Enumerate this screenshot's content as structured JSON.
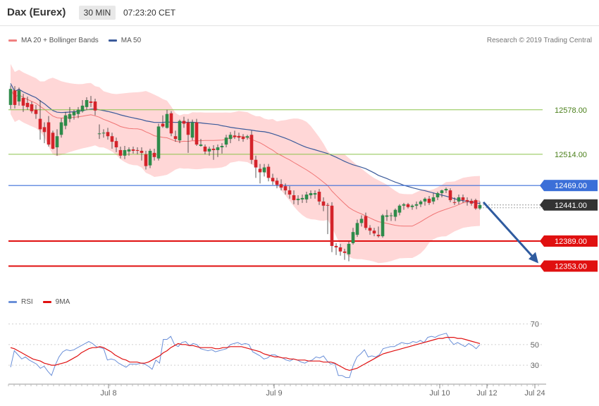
{
  "header": {
    "title": "Dax (Eurex)",
    "timeframe": "30 MIN",
    "time": "07:23:20 CET"
  },
  "legend": {
    "bollinger_label": "MA 20 + Bollinger Bands",
    "ma50_label": "MA 50",
    "credit": "Research © 2019 Trading Central"
  },
  "rsi_legend": {
    "rsi_label": "RSI",
    "ma9_label": "9MA"
  },
  "colors": {
    "up_candle": "#2e8b4a",
    "down_candle": "#d4232a",
    "bollinger_band": "#ffd0d0",
    "ma20": "#f07575",
    "ma50": "#3b5a9a",
    "resistance": "#3b6fd8",
    "support": "#e01010",
    "target": "#8bc34a",
    "arrow": "#2f5b9f",
    "rsi": "#6a8fd8",
    "rsi_ma": "#e01010"
  },
  "chart_data": [
    {
      "type": "candlestick",
      "title": "Dax (Eurex)",
      "ylim": [
        12320,
        12660
      ],
      "x_ticks": [
        "Jul 8",
        "Jul 9",
        "Jul 10",
        "Jul 12",
        "Jul 24"
      ],
      "levels": [
        {
          "value": 12578,
          "label": "12578.00",
          "kind": "target"
        },
        {
          "value": 12514,
          "label": "12514.00",
          "kind": "target"
        },
        {
          "value": 12469,
          "label": "12469.00",
          "kind": "resistance"
        },
        {
          "value": 12441,
          "label": "12441.00",
          "kind": "current"
        },
        {
          "value": 12389,
          "label": "12389.00",
          "kind": "support"
        },
        {
          "value": 12353,
          "label": "12353.00",
          "kind": "support"
        }
      ],
      "ohlc": [
        [
          12585,
          12613,
          12579,
          12608
        ],
        [
          12606,
          12612,
          12580,
          12585
        ],
        [
          12590,
          12610,
          12584,
          12606
        ],
        [
          12595,
          12601,
          12575,
          12584
        ],
        [
          12588,
          12597,
          12578,
          12582
        ],
        [
          12586,
          12590,
          12573,
          12576
        ],
        [
          12578,
          12585,
          12565,
          12572
        ],
        [
          12565,
          12592,
          12535,
          12550
        ],
        [
          12553,
          12560,
          12530,
          12546
        ],
        [
          12560,
          12569,
          12525,
          12528
        ],
        [
          12545,
          12548,
          12521,
          12522
        ],
        [
          12524,
          12550,
          12512,
          12540
        ],
        [
          12542,
          12566,
          12538,
          12560
        ],
        [
          12555,
          12575,
          12550,
          12570
        ],
        [
          12565,
          12582,
          12560,
          12572
        ],
        [
          12570,
          12578,
          12564,
          12575
        ],
        [
          12572,
          12582,
          12566,
          12578
        ],
        [
          12576,
          12592,
          12574,
          12584
        ],
        [
          12582,
          12596,
          12578,
          12592
        ],
        [
          12590,
          12598,
          12582,
          12588
        ],
        [
          12590,
          12594,
          12570,
          12577
        ],
        [
          12543,
          12557,
          12536,
          12544
        ],
        [
          12544,
          12550,
          12538,
          12545
        ],
        [
          12546,
          12552,
          12535,
          12540
        ],
        [
          12540,
          12545,
          12522,
          12532
        ],
        [
          12533,
          12538,
          12517,
          12524
        ],
        [
          12520,
          12525,
          12508,
          12512
        ],
        [
          12512,
          12526,
          12507,
          12520
        ],
        [
          12518,
          12524,
          12512,
          12521
        ],
        [
          12521,
          12525,
          12515,
          12519
        ],
        [
          12520,
          12524,
          12514,
          12519
        ],
        [
          12519,
          12524,
          12505,
          12516
        ],
        [
          12514,
          12519,
          12492,
          12497
        ],
        [
          12498,
          12522,
          12494,
          12519
        ],
        [
          12516,
          12522,
          12505,
          12510
        ],
        [
          12508,
          12558,
          12505,
          12554
        ],
        [
          12558,
          12570,
          12552,
          12554
        ],
        [
          12552,
          12578,
          12551,
          12572
        ],
        [
          12573,
          12576,
          12540,
          12544
        ],
        [
          12540,
          12548,
          12532,
          12536
        ],
        [
          12534,
          12564,
          12530,
          12562
        ],
        [
          12562,
          12568,
          12552,
          12558
        ],
        [
          12560,
          12565,
          12516,
          12542
        ],
        [
          12538,
          12564,
          12534,
          12560
        ],
        [
          12560,
          12565,
          12526,
          12528
        ],
        [
          12526,
          12536,
          12525,
          12528
        ],
        [
          12525,
          12528,
          12514,
          12518
        ],
        [
          12518,
          12525,
          12512,
          12522
        ],
        [
          12522,
          12527,
          12506,
          12520
        ],
        [
          12520,
          12528,
          12510,
          12524
        ],
        [
          12524,
          12530,
          12515,
          12526
        ],
        [
          12528,
          12542,
          12524,
          12538
        ],
        [
          12536,
          12546,
          12530,
          12542
        ],
        [
          12541,
          12548,
          12536,
          12539
        ],
        [
          12540,
          12545,
          12533,
          12538
        ],
        [
          12539,
          12543,
          12532,
          12536
        ],
        [
          12538,
          12542,
          12535,
          12540
        ],
        [
          12542,
          12548,
          12500,
          12506
        ],
        [
          12506,
          12512,
          12480,
          12495
        ],
        [
          12493,
          12500,
          12472,
          12488
        ],
        [
          12488,
          12500,
          12482,
          12495
        ],
        [
          12496,
          12500,
          12475,
          12480
        ],
        [
          12480,
          12486,
          12470,
          12475
        ],
        [
          12476,
          12480,
          12465,
          12470
        ],
        [
          12471,
          12478,
          12462,
          12466
        ],
        [
          12468,
          12472,
          12456,
          12462
        ],
        [
          12462,
          12468,
          12450,
          12456
        ],
        [
          12455,
          12462,
          12442,
          12448
        ],
        [
          12448,
          12455,
          12441,
          12450
        ],
        [
          12449,
          12456,
          12444,
          12451
        ],
        [
          12449,
          12460,
          12444,
          12456
        ],
        [
          12455,
          12462,
          12450,
          12458
        ],
        [
          12456,
          12462,
          12450,
          12458
        ],
        [
          12460,
          12464,
          12441,
          12446
        ],
        [
          12446,
          12452,
          12432,
          12440
        ],
        [
          12441,
          12444,
          12399,
          12440
        ],
        [
          12440,
          12445,
          12373,
          12382
        ],
        [
          12382,
          12386,
          12369,
          12380
        ],
        [
          12380,
          12385,
          12368,
          12374
        ],
        [
          12374,
          12378,
          12362,
          12372
        ],
        [
          12370,
          12388,
          12360,
          12385
        ],
        [
          12386,
          12408,
          12384,
          12402
        ],
        [
          12398,
          12420,
          12395,
          12415
        ],
        [
          12415,
          12426,
          12410,
          12421
        ],
        [
          12425,
          12430,
          12405,
          12408
        ],
        [
          12408,
          12412,
          12398,
          12404
        ],
        [
          12404,
          12408,
          12396,
          12400
        ],
        [
          12398,
          12410,
          12394,
          12396
        ],
        [
          12396,
          12428,
          12394,
          12426
        ],
        [
          12424,
          12434,
          12418,
          12426
        ],
        [
          12425,
          12430,
          12418,
          12426
        ],
        [
          12424,
          12436,
          12418,
          12434
        ],
        [
          12430,
          12442,
          12426,
          12440
        ],
        [
          12440,
          12444,
          12434,
          12442
        ],
        [
          12442,
          12444,
          12436,
          12438
        ],
        [
          12438,
          12442,
          12434,
          12440
        ],
        [
          12440,
          12446,
          12435,
          12442
        ],
        [
          12442,
          12448,
          12438,
          12446
        ],
        [
          12446,
          12452,
          12440,
          12450
        ],
        [
          12450,
          12454,
          12441,
          12444
        ],
        [
          12446,
          12458,
          12442,
          12452
        ],
        [
          12452,
          12460,
          12448,
          12458
        ],
        [
          12458,
          12463,
          12452,
          12462
        ],
        [
          12462,
          12466,
          12458,
          12464
        ],
        [
          12462,
          12465,
          12445,
          12448
        ],
        [
          12445,
          12452,
          12441,
          12444
        ],
        [
          12446,
          12456,
          12442,
          12452
        ],
        [
          12452,
          12456,
          12444,
          12448
        ],
        [
          12448,
          12452,
          12440,
          12446
        ],
        [
          12447,
          12450,
          12440,
          12443
        ],
        [
          12448,
          12450,
          12434,
          12436
        ],
        [
          12436,
          12446,
          12434,
          12441
        ]
      ]
    },
    {
      "type": "line",
      "title": "RSI",
      "ylim": [
        15,
        80
      ],
      "y_ticks": [
        30,
        50,
        70
      ],
      "series": [
        {
          "name": "RSI",
          "values": [
            28,
            44,
            40,
            36,
            38,
            35,
            33,
            31,
            27,
            29,
            24,
            20,
            30,
            38,
            43,
            45,
            44,
            45,
            47,
            49,
            51,
            53,
            51,
            48,
            47,
            46,
            35,
            36,
            35,
            32,
            30,
            28,
            31,
            31,
            31,
            32,
            31,
            29,
            26,
            35,
            32,
            55,
            55,
            58,
            50,
            48,
            52,
            53,
            49,
            51,
            50,
            46,
            45,
            44,
            45,
            43,
            44,
            45,
            46,
            50,
            51,
            52,
            50,
            51,
            50,
            43,
            41,
            39,
            36,
            37,
            40,
            40,
            38,
            37,
            35,
            34,
            36,
            35,
            33,
            32,
            34,
            35,
            38,
            37,
            39,
            34,
            31,
            32,
            20,
            20,
            18,
            18,
            30,
            38,
            41,
            45,
            38,
            39,
            38,
            40,
            46,
            47,
            48,
            48,
            50,
            52,
            51,
            51,
            53,
            52,
            54,
            52,
            57,
            58,
            57,
            59,
            60,
            61,
            54,
            50,
            52,
            50,
            48,
            51,
            49,
            46,
            50
          ]
        },
        {
          "name": "9MA",
          "values": [
            47,
            46,
            44,
            42,
            40,
            38,
            36,
            35,
            34,
            32,
            31,
            30,
            30,
            31,
            32,
            33,
            35,
            37,
            39,
            42,
            44,
            46,
            47,
            47,
            48,
            47,
            45,
            43,
            40,
            38,
            36,
            35,
            33,
            33,
            33,
            32,
            32,
            33,
            35,
            37,
            39,
            42,
            44,
            47,
            49,
            51,
            50,
            50,
            49,
            49,
            48,
            47,
            47,
            47,
            47,
            46,
            46,
            47,
            47,
            48,
            48,
            48,
            48,
            47,
            46,
            45,
            44,
            43,
            41,
            40,
            39,
            38,
            38,
            37,
            37,
            36,
            36,
            35,
            35,
            35,
            34,
            34,
            34,
            34,
            33,
            33,
            33,
            32,
            30,
            28,
            26,
            25,
            26,
            27,
            29,
            31,
            33,
            35,
            37,
            39,
            41,
            42,
            43,
            44,
            45,
            46,
            47,
            48,
            49,
            50,
            51,
            52,
            53,
            54,
            55,
            56,
            56,
            57,
            57,
            57,
            56,
            56,
            55,
            54,
            53,
            52,
            51
          ]
        }
      ]
    }
  ]
}
